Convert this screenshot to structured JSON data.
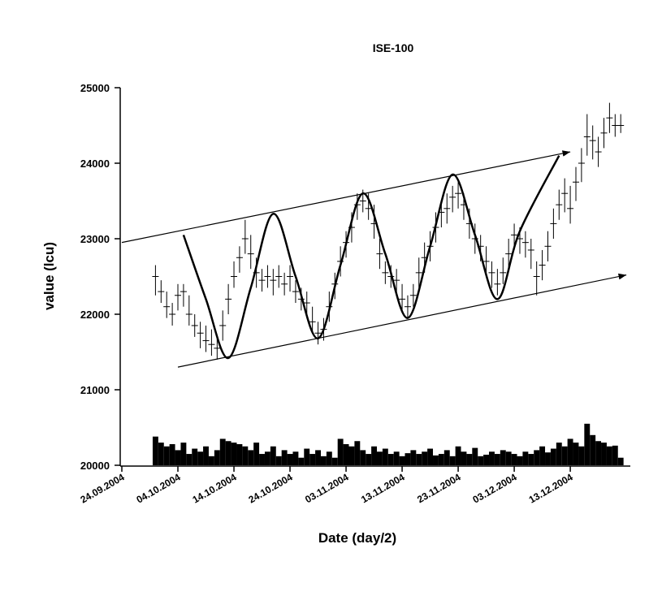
{
  "chart_data": {
    "type": "hlc",
    "title": "ISE-100",
    "x_label": "Date (day/2)",
    "y_label": "value (lcu)",
    "color": "#000000",
    "x": [
      "2004-09-30",
      "2004-10-01",
      "2004-10-02",
      "2004-10-03",
      "2004-10-04",
      "2004-10-05",
      "2004-10-06",
      "2004-10-07",
      "2004-10-08",
      "2004-10-09",
      "2004-10-10",
      "2004-10-11",
      "2004-10-12",
      "2004-10-13",
      "2004-10-14",
      "2004-10-15",
      "2004-10-16",
      "2004-10-17",
      "2004-10-18",
      "2004-10-19",
      "2004-10-20",
      "2004-10-21",
      "2004-10-22",
      "2004-10-23",
      "2004-10-24",
      "2004-10-25",
      "2004-10-26",
      "2004-10-27",
      "2004-10-28",
      "2004-10-29",
      "2004-10-30",
      "2004-10-31",
      "2004-11-01",
      "2004-11-02",
      "2004-11-03",
      "2004-11-04",
      "2004-11-05",
      "2004-11-06",
      "2004-11-07",
      "2004-11-08",
      "2004-11-09",
      "2004-11-10",
      "2004-11-11",
      "2004-11-12",
      "2004-11-13",
      "2004-11-14",
      "2004-11-15",
      "2004-11-16",
      "2004-11-17",
      "2004-11-18",
      "2004-11-19",
      "2004-11-20",
      "2004-11-21",
      "2004-11-22",
      "2004-11-23",
      "2004-11-24",
      "2004-11-25",
      "2004-11-26",
      "2004-11-27",
      "2004-11-28",
      "2004-11-29",
      "2004-11-30",
      "2004-12-01",
      "2004-12-02",
      "2004-12-03",
      "2004-12-04",
      "2004-12-05",
      "2004-12-06",
      "2004-12-07",
      "2004-12-08",
      "2004-12-09",
      "2004-12-10",
      "2004-12-11",
      "2004-12-12",
      "2004-12-13",
      "2004-12-14",
      "2004-12-15",
      "2004-12-16",
      "2004-12-17",
      "2004-12-18",
      "2004-12-19",
      "2004-12-20",
      "2004-12-21",
      "2004-12-22"
    ],
    "high": [
      22650,
      22450,
      22300,
      22150,
      22400,
      22400,
      22250,
      22000,
      21900,
      21850,
      21800,
      21700,
      22050,
      22400,
      22700,
      22900,
      23250,
      23050,
      22750,
      22600,
      22650,
      22600,
      22650,
      22550,
      22650,
      22450,
      22350,
      22300,
      22100,
      21900,
      21950,
      22300,
      22550,
      22900,
      23100,
      23350,
      23600,
      23650,
      23600,
      23450,
      23000,
      22700,
      22650,
      22600,
      22400,
      22250,
      22400,
      22750,
      22950,
      23100,
      23350,
      23500,
      23600,
      23700,
      23750,
      23600,
      23400,
      23200,
      23050,
      22900,
      22700,
      22600,
      22750,
      23000,
      23200,
      23150,
      23100,
      23000,
      22700,
      22850,
      23100,
      23400,
      23650,
      23800,
      23700,
      23950,
      24200,
      24650,
      24500,
      24350,
      24600,
      24800,
      24650,
      24650
    ],
    "low": [
      22250,
      22150,
      21950,
      21850,
      22050,
      22100,
      21850,
      21700,
      21550,
      21500,
      21450,
      21400,
      21650,
      22000,
      22350,
      22550,
      22800,
      22600,
      22350,
      22300,
      22350,
      22250,
      22350,
      22250,
      22300,
      22150,
      22050,
      21950,
      21750,
      21600,
      21650,
      21900,
      22200,
      22500,
      22750,
      22950,
      23250,
      23350,
      23250,
      23000,
      22600,
      22400,
      22350,
      22250,
      22050,
      21950,
      22100,
      22350,
      22550,
      22700,
      22950,
      23150,
      23200,
      23350,
      23400,
      23250,
      23000,
      22800,
      22700,
      22500,
      22350,
      22250,
      22400,
      22600,
      22850,
      22800,
      22750,
      22600,
      22250,
      22450,
      22700,
      23000,
      23250,
      23350,
      23200,
      23500,
      23750,
      24100,
      24050,
      23950,
      24200,
      24400,
      24350,
      24400
    ],
    "close": [
      22500,
      22300,
      22100,
      22000,
      22250,
      22300,
      22000,
      21850,
      21750,
      21650,
      21600,
      21550,
      21850,
      22200,
      22500,
      22750,
      23000,
      22800,
      22550,
      22450,
      22500,
      22450,
      22500,
      22400,
      22500,
      22300,
      22200,
      22150,
      21900,
      21750,
      21800,
      22100,
      22400,
      22700,
      22950,
      23150,
      23450,
      23500,
      23400,
      23200,
      22800,
      22550,
      22500,
      22450,
      22200,
      22100,
      22250,
      22550,
      22750,
      22900,
      23150,
      23350,
      23400,
      23550,
      23600,
      23450,
      23200,
      23000,
      22900,
      22700,
      22550,
      22400,
      22550,
      22800,
      23050,
      23000,
      22950,
      22850,
      22500,
      22650,
      22900,
      23200,
      23450,
      23600,
      23400,
      23750,
      24000,
      24350,
      24300,
      24150,
      24400,
      24600,
      24500,
      24500
    ],
    "volume": [
      20380,
      20300,
      20250,
      20280,
      20200,
      20300,
      20150,
      20220,
      20180,
      20250,
      20120,
      20200,
      20350,
      20320,
      20300,
      20280,
      20250,
      20200,
      20300,
      20150,
      20180,
      20250,
      20120,
      20200,
      20150,
      20180,
      20100,
      20220,
      20150,
      20200,
      20120,
      20180,
      20100,
      20350,
      20280,
      20250,
      20320,
      20200,
      20150,
      20250,
      20180,
      20220,
      20150,
      20180,
      20120,
      20160,
      20200,
      20150,
      20180,
      20220,
      20130,
      20150,
      20200,
      20120,
      20250,
      20180,
      20150,
      20230,
      20120,
      20140,
      20180,
      20150,
      20200,
      20180,
      20150,
      20120,
      20180,
      20150,
      20200,
      20250,
      20170,
      20220,
      20300,
      20250,
      20350,
      20300,
      20250,
      20550,
      20400,
      20320,
      20300,
      20250,
      20260,
      20100
    ],
    "curve": {
      "x": [
        "2004-10-05",
        "2004-10-09",
        "2004-10-13",
        "2004-10-17",
        "2004-10-21",
        "2004-10-25",
        "2004-10-29",
        "2004-11-02",
        "2004-11-06",
        "2004-11-10",
        "2004-11-14",
        "2004-11-18",
        "2004-11-22",
        "2004-11-26",
        "2004-11-30",
        "2004-12-04",
        "2004-12-11"
      ],
      "values": [
        23050,
        22200,
        21420,
        22350,
        23330,
        22500,
        21680,
        22650,
        23600,
        22800,
        21950,
        22900,
        23850,
        23050,
        22200,
        23100,
        24100
      ]
    },
    "trend_lines": [
      {
        "x": [
          "2004-09-24",
          "2004-12-13"
        ],
        "values": [
          22950,
          24150
        ]
      },
      {
        "x": [
          "2004-10-04",
          "2004-12-23"
        ],
        "values": [
          21300,
          22520
        ]
      }
    ],
    "xlim": [
      "2004-09-24",
      "2004-12-24"
    ],
    "xticks": [
      {
        "value": "2004-09-24",
        "label": "24.09.2004"
      },
      {
        "value": "2004-10-04",
        "label": "04.10.2004"
      },
      {
        "value": "2004-10-14",
        "label": "14.10.2004"
      },
      {
        "value": "2004-10-24",
        "label": "24.10.2004"
      },
      {
        "value": "2004-11-03",
        "label": "03.11.2004"
      },
      {
        "value": "2004-11-13",
        "label": "13.11.2004"
      },
      {
        "value": "2004-11-23",
        "label": "23.11.2004"
      },
      {
        "value": "2004-12-03",
        "label": "03.12.2004"
      },
      {
        "value": "2004-12-13",
        "label": "13.12.2004"
      }
    ],
    "ylim": [
      20000,
      25000
    ],
    "yticks": [
      20000,
      21000,
      22000,
      23000,
      24000,
      25000
    ]
  }
}
